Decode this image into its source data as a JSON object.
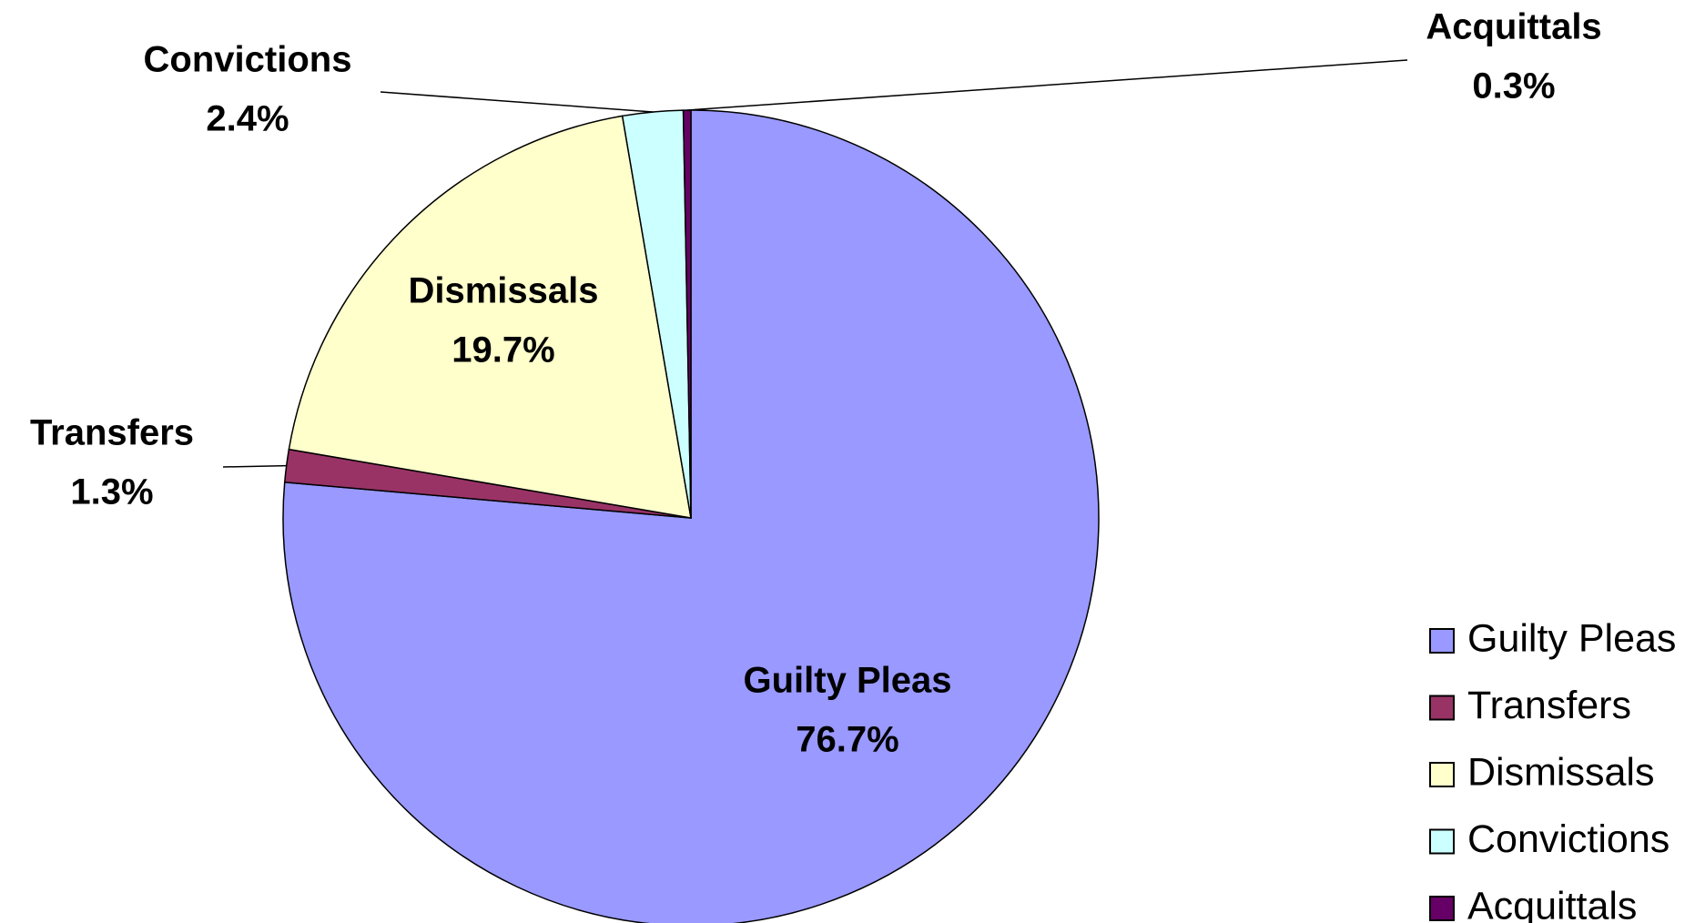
{
  "chart_data": {
    "type": "pie",
    "categories": [
      "Guilty Pleas",
      "Transfers",
      "Dismissals",
      "Convictions",
      "Acquittals"
    ],
    "values": [
      76.7,
      1.3,
      19.7,
      2.4,
      0.3
    ],
    "value_labels": [
      "76.7%",
      "1.3%",
      "19.7%",
      "2.4%",
      "0.3%"
    ],
    "colors": [
      "#9999ff",
      "#993366",
      "#ffffcc",
      "#ccffff",
      "#660066"
    ],
    "legend": "right"
  }
}
